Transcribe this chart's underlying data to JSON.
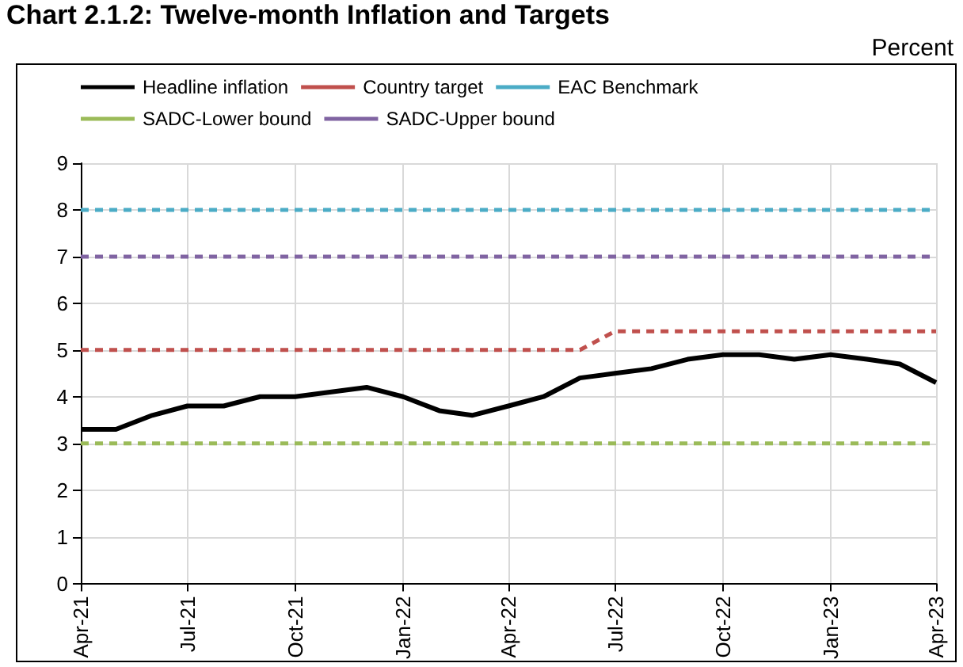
{
  "chart_data": {
    "type": "line",
    "title": "Chart 2.1.2: Twelve-month Inflation and Targets",
    "ylabel": "Percent",
    "x": [
      "2021-04",
      "2021-05",
      "2021-06",
      "2021-07",
      "2021-08",
      "2021-09",
      "2021-10",
      "2021-11",
      "2021-12",
      "2022-01",
      "2022-02",
      "2022-03",
      "2022-04",
      "2022-05",
      "2022-06",
      "2022-07",
      "2022-08",
      "2022-09",
      "2022-10",
      "2022-11",
      "2022-12",
      "2023-01",
      "2023-02",
      "2023-03",
      "2023-04"
    ],
    "series": [
      {
        "name": "Headline inflation",
        "color": "#000000",
        "line_style": "solid",
        "values": [
          3.3,
          3.3,
          3.6,
          3.8,
          3.8,
          4.0,
          4.0,
          4.1,
          4.2,
          4.0,
          3.7,
          3.6,
          3.8,
          4.0,
          4.4,
          4.5,
          4.6,
          4.8,
          4.9,
          4.9,
          4.8,
          4.9,
          4.8,
          4.7,
          4.3
        ]
      },
      {
        "name": "Country target",
        "color": "#c0504d",
        "line_style": "dashed",
        "values": [
          5,
          5,
          5,
          5,
          5,
          5,
          5,
          5,
          5,
          5,
          5,
          5,
          5,
          5,
          5,
          5.4,
          5.4,
          5.4,
          5.4,
          5.4,
          5.4,
          5.4,
          5.4,
          5.4,
          5.4
        ]
      },
      {
        "name": "EAC Benchmark",
        "color": "#4bacc6",
        "line_style": "dashed",
        "values": [
          8,
          8,
          8,
          8,
          8,
          8,
          8,
          8,
          8,
          8,
          8,
          8,
          8,
          8,
          8,
          8,
          8,
          8,
          8,
          8,
          8,
          8,
          8,
          8,
          8
        ]
      },
      {
        "name": "SADC-Lower bound",
        "color": "#9bbb59",
        "line_style": "dashed",
        "values": [
          3,
          3,
          3,
          3,
          3,
          3,
          3,
          3,
          3,
          3,
          3,
          3,
          3,
          3,
          3,
          3,
          3,
          3,
          3,
          3,
          3,
          3,
          3,
          3,
          3
        ]
      },
      {
        "name": "SADC-Upper bound",
        "color": "#8064a2",
        "line_style": "dashed",
        "values": [
          7,
          7,
          7,
          7,
          7,
          7,
          7,
          7,
          7,
          7,
          7,
          7,
          7,
          7,
          7,
          7,
          7,
          7,
          7,
          7,
          7,
          7,
          7,
          7,
          7
        ]
      }
    ],
    "xlim": [
      "2021-04",
      "2023-04"
    ],
    "xticks": [
      {
        "value": "2021-04",
        "label": "Apr-21"
      },
      {
        "value": "2021-07",
        "label": "Jul-21"
      },
      {
        "value": "2021-10",
        "label": "Oct-21"
      },
      {
        "value": "2022-01",
        "label": "Jan-22"
      },
      {
        "value": "2022-04",
        "label": "Apr-22"
      },
      {
        "value": "2022-07",
        "label": "Jul-22"
      },
      {
        "value": "2022-10",
        "label": "Oct-22"
      },
      {
        "value": "2023-01",
        "label": "Jan-23"
      },
      {
        "value": "2023-04",
        "label": "Apr-23"
      }
    ],
    "ylim": [
      0,
      9
    ],
    "yticks": [
      0,
      1,
      2,
      3,
      4,
      5,
      6,
      7,
      8,
      9
    ],
    "grid": true,
    "legend": "top",
    "marker": "none"
  }
}
